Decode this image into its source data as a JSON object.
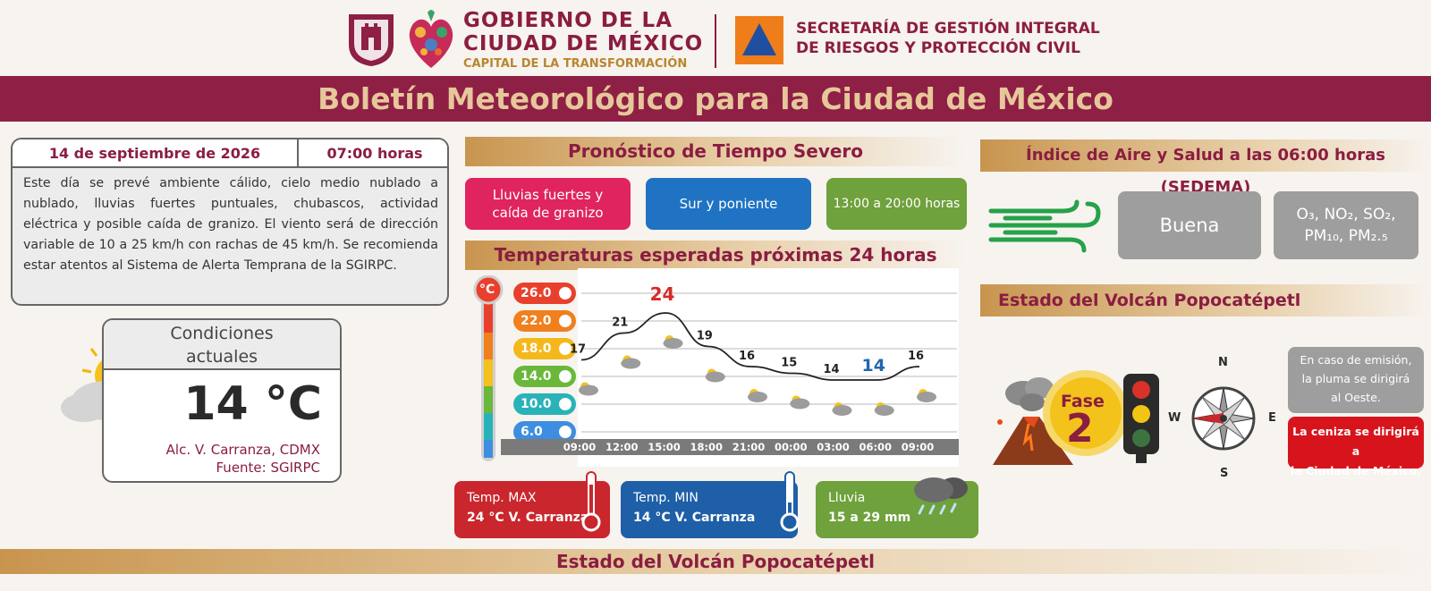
{
  "header": {
    "gov_line1": "GOBIERNO DE LA",
    "gov_line2": "CIUDAD DE MÉXICO",
    "gov_line3": "CAPITAL DE LA TRANSFORMACIÓN",
    "sec_line1": "SECRETARÍA DE GESTIÓN INTEGRAL",
    "sec_line2": "DE RIESGOS Y PROTECCIÓN CIVIL"
  },
  "banner": {
    "title": "Boletín Meteorológico para la Ciudad de México"
  },
  "bulletin": {
    "date": "14 de septiembre de 2026",
    "time": "07:00 horas",
    "text": "Este día se prevé ambiente cálido, cielo medio nublado a nublado, lluvias fuertes puntuales, chubascos, actividad eléctrica y posible caída de granizo. El viento será de dirección variable de 10 a 25 km/h con rachas de 45 km/h. Se recomienda estar atentos al Sistema de Alerta Temprana de la SGIRPC."
  },
  "current": {
    "title_line1": "Condiciones",
    "title_line2": "actuales",
    "temp": "14 °C",
    "location": "Alc. V. Carranza, CDMX",
    "source": "Fuente: SGIRPC"
  },
  "severe": {
    "title": "Pronóstico de Tiempo Severo",
    "item1_line1": "Lluvias fuertes y",
    "item1_line2": "caída de granizo",
    "item2": "Sur y poniente",
    "item3": "13:00 a 20:00 horas"
  },
  "temps": {
    "title": "Temperaturas esperadas próximas 24 horas",
    "unit": "°C",
    "scale": [
      "26.0",
      "22.0",
      "18.0",
      "14.0",
      "10.0",
      "6.0"
    ]
  },
  "chart_data": {
    "type": "line",
    "x": [
      "09:00",
      "12:00",
      "15:00",
      "18:00",
      "21:00",
      "00:00",
      "03:00",
      "06:00",
      "09:00"
    ],
    "series": [
      {
        "values": [
          17,
          21,
          24,
          19,
          16,
          15,
          14,
          14,
          16
        ]
      }
    ],
    "point_labels": [
      "17",
      "21",
      "24",
      "19",
      "16",
      "15",
      "14",
      "14",
      "16"
    ],
    "ylim": [
      4,
      28
    ],
    "grid": true,
    "colors": {
      "line": "#222222",
      "max_label": "#d42a2a",
      "min_label": "#2167b0"
    }
  },
  "summary": {
    "max_label": "Temp. MAX",
    "max_value": "24 °C  V. Carranza",
    "min_label": "Temp. MIN",
    "min_value": "14 °C  V. Carranza",
    "rain_label": "Lluvia",
    "rain_value": "15 a 29 mm"
  },
  "air": {
    "title": "Índice de Aire y Salud a las 06:00 horas (SEDEMA)",
    "quality": "Buena",
    "pollutants_line1": "O₃, NO₂, SO₂,",
    "pollutants_line2": "PM₁₀, PM₂.₅"
  },
  "volcano": {
    "title": "Estado del Volcán Popocatépetl",
    "phase_label": "Fase",
    "phase_number": "2",
    "compass": {
      "n": "N",
      "s": "S",
      "e": "E",
      "w": "W"
    },
    "plume_line1": "En caso de emisión,",
    "plume_line2": "la pluma se dirigirá",
    "plume_line3": "al Oeste.",
    "ash_line1": "La ceniza se dirigirá a",
    "ash_line2": "la Ciudad de México."
  },
  "footer": {
    "title": "Estado del Volcán Popocatépetl"
  },
  "colors": {
    "maroon": "#8e1f45",
    "gold": "#c8954f",
    "pink": "#e0245e",
    "blue": "#1f73c2",
    "green": "#6fa13c",
    "red": "#c9272d",
    "gray": "#9e9e9e"
  },
  "icons": [
    "cdmx-seal-icon",
    "heart-emblem-icon",
    "civil-protection-triangle-icon",
    "sun-cloud-icon",
    "thermometer-icon",
    "rain-cloud-icon",
    "wind-icon",
    "volcano-icon",
    "traffic-light-icon",
    "compass-icon"
  ]
}
